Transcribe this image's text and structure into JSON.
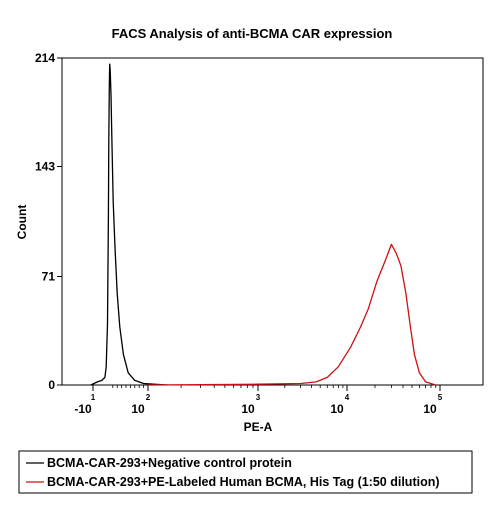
{
  "chart_data": {
    "type": "line",
    "title": "FACS Analysis of anti-BCMA CAR expression",
    "xlabel": "PE-A",
    "ylabel": "Count",
    "x_scale": "biexponential",
    "x_ticks": [
      {
        "value": -10,
        "base": "-10",
        "exp": "1"
      },
      {
        "value": 100,
        "base": "10",
        "exp": "2"
      },
      {
        "value": 1000,
        "base": "10",
        "exp": "3"
      },
      {
        "value": 10000,
        "base": "10",
        "exp": "4"
      },
      {
        "value": 100000,
        "base": "10",
        "exp": "5"
      }
    ],
    "y_ticks": [
      0,
      71,
      143,
      214
    ],
    "ylim": [
      0,
      214
    ],
    "grid": false,
    "legend_position": "bottom",
    "series": [
      {
        "name": "BCMA-CAR-293+Negative control protein",
        "color": "#000000",
        "points": [
          [
            -12,
            0
          ],
          [
            -6,
            2
          ],
          [
            -2,
            3
          ],
          [
            2,
            5
          ],
          [
            5,
            12
          ],
          [
            8,
            40
          ],
          [
            10,
            110
          ],
          [
            11,
            160
          ],
          [
            12,
            195
          ],
          [
            13,
            210
          ],
          [
            14,
            206
          ],
          [
            16,
            190
          ],
          [
            18,
            160
          ],
          [
            21,
            120
          ],
          [
            25,
            90
          ],
          [
            30,
            60
          ],
          [
            36,
            38
          ],
          [
            44,
            20
          ],
          [
            55,
            8
          ],
          [
            70,
            3
          ],
          [
            90,
            1
          ],
          [
            150,
            0
          ]
        ]
      },
      {
        "name": "BCMA-CAR-293+PE-Labeled Human BCMA, His Tag (1:50 dilution)",
        "color": "#cc1111",
        "points": [
          [
            100,
            0
          ],
          [
            1000,
            0.5
          ],
          [
            3000,
            1
          ],
          [
            4500,
            2
          ],
          [
            6000,
            5
          ],
          [
            8000,
            12
          ],
          [
            11000,
            25
          ],
          [
            14000,
            38
          ],
          [
            17000,
            50
          ],
          [
            21000,
            68
          ],
          [
            26000,
            82
          ],
          [
            30000,
            92
          ],
          [
            34000,
            86
          ],
          [
            38000,
            78
          ],
          [
            43000,
            60
          ],
          [
            48000,
            38
          ],
          [
            53000,
            20
          ],
          [
            60000,
            8
          ],
          [
            70000,
            2
          ],
          [
            90000,
            0
          ]
        ]
      }
    ]
  }
}
